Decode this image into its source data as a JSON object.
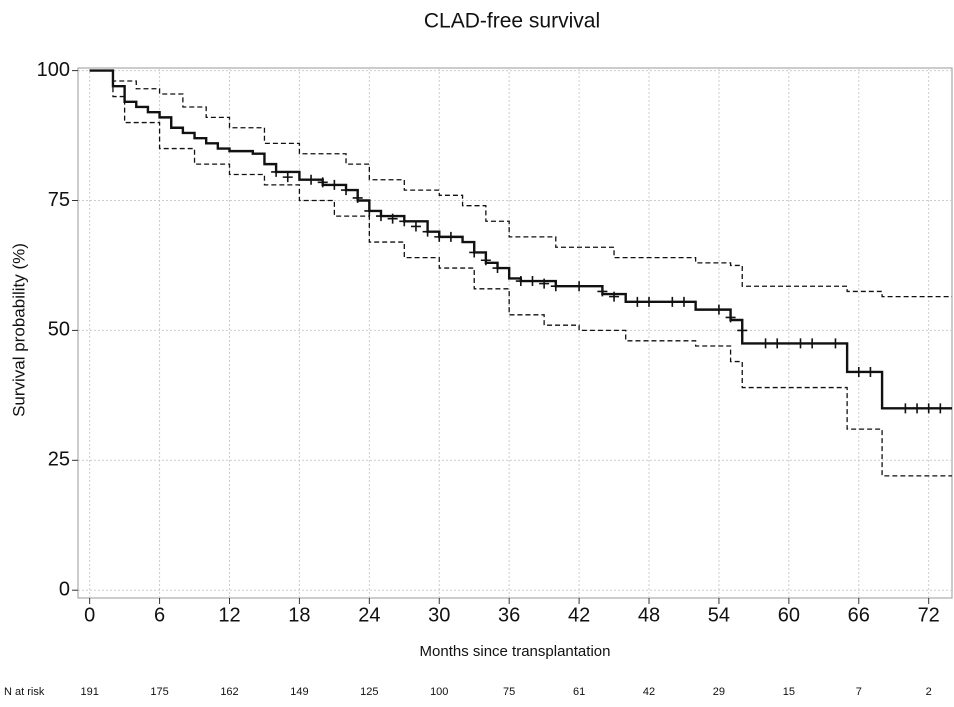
{
  "chart_data": {
    "type": "survival",
    "title": "CLAD-free survival",
    "xlabel": "Months since transplantation",
    "ylabel": "Survival probability (%)",
    "xlim": [
      -1,
      74
    ],
    "ylim": [
      -1.5,
      100.5
    ],
    "xticks": [
      0,
      6,
      12,
      18,
      24,
      30,
      36,
      42,
      48,
      54,
      60,
      66,
      72
    ],
    "yticks": [
      0,
      25,
      50,
      75,
      100
    ],
    "grid": true,
    "series": [
      {
        "color": "#111111",
        "linestyle": "solid",
        "x": [
          0,
          1,
          2,
          3,
          4,
          5,
          6,
          7,
          8,
          9,
          10,
          11,
          12,
          14,
          15,
          16,
          18,
          20,
          22,
          23,
          24,
          25,
          27,
          29,
          30,
          32,
          33,
          34,
          35,
          36,
          37,
          40,
          44,
          46,
          52,
          55,
          56,
          65,
          68,
          74
        ],
        "values": [
          100,
          100,
          97,
          94,
          93,
          92,
          91,
          89,
          88,
          87,
          86,
          85,
          84.5,
          84,
          82,
          80.5,
          79,
          78,
          77,
          75,
          73,
          72,
          71,
          69,
          68,
          67,
          65,
          63,
          62,
          60,
          59.5,
          58.5,
          57,
          55.5,
          54,
          52,
          47.5,
          42,
          35,
          35
        ]
      },
      {
        "color": "#111111",
        "linestyle": "dashed",
        "x": [
          0,
          1,
          2,
          4,
          6,
          8,
          10,
          12,
          15,
          18,
          22,
          24,
          27,
          30,
          32,
          34,
          36,
          40,
          45,
          52,
          55,
          56,
          65,
          68,
          74
        ],
        "values": [
          100,
          100,
          98,
          96.5,
          95.5,
          93,
          91,
          89,
          86,
          84,
          82,
          79,
          77,
          76,
          74,
          71,
          68,
          66,
          64,
          63,
          62.5,
          58.5,
          57.5,
          56.5,
          56.5
        ]
      },
      {
        "color": "#111111",
        "linestyle": "dashed",
        "x": [
          0,
          1,
          2,
          3,
          6,
          9,
          12,
          15,
          18,
          21,
          24,
          27,
          30,
          33,
          36,
          39,
          42,
          46,
          52,
          55,
          56,
          65,
          68,
          74
        ],
        "values": [
          100,
          100,
          95,
          90,
          85,
          82,
          80,
          78,
          75,
          72,
          67,
          64,
          62,
          58,
          53,
          51,
          50,
          48,
          47,
          44,
          39,
          31,
          22,
          22
        ]
      },
      {
        "color": "#111111",
        "marker": "+",
        "x": [
          16,
          17,
          19,
          20,
          21,
          22,
          23,
          24,
          25,
          26,
          27,
          28,
          29,
          30,
          31,
          33,
          34,
          35,
          37,
          38,
          39,
          40,
          42,
          44,
          45,
          47,
          48,
          50,
          51,
          54,
          55,
          56,
          58,
          59,
          61,
          62,
          64,
          66,
          67,
          70,
          71,
          72,
          73
        ],
        "values": [
          80.5,
          79.5,
          79,
          78.5,
          78,
          77,
          75.5,
          73,
          72,
          71.5,
          71,
          70,
          69,
          68,
          68,
          65,
          63.5,
          62,
          59.5,
          59.5,
          59,
          58.5,
          58.5,
          57.5,
          56.5,
          55.5,
          55.5,
          55.5,
          55.5,
          54,
          52.5,
          50,
          47.5,
          47.5,
          47.5,
          47.5,
          47.5,
          42,
          42,
          35,
          35,
          35,
          35
        ]
      }
    ],
    "risk_table": {
      "label": "N at risk",
      "values": [
        191,
        175,
        162,
        149,
        125,
        100,
        75,
        61,
        42,
        29,
        15,
        7,
        2
      ]
    }
  }
}
